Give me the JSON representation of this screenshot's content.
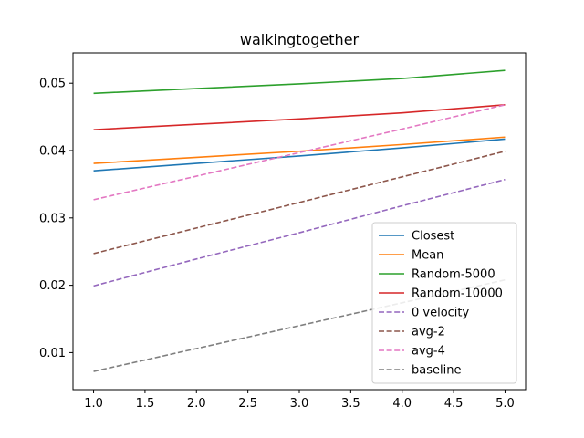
{
  "chart_data": {
    "type": "line",
    "title": "walkingtogether",
    "xlabel": "",
    "ylabel": "",
    "xlim": [
      0.8,
      5.2
    ],
    "ylim": [
      0.0045,
      0.0545
    ],
    "x_ticks": [
      "1.0",
      "1.5",
      "2.0",
      "2.5",
      "3.0",
      "3.5",
      "4.0",
      "4.5",
      "5.0"
    ],
    "y_ticks": [
      "0.01",
      "0.02",
      "0.03",
      "0.04",
      "0.05"
    ],
    "x": [
      1,
      2,
      3,
      4,
      5
    ],
    "grid": false,
    "legend_position": "lower-right",
    "series": [
      {
        "name": "Closest",
        "color": "#1f77b4",
        "dash": "solid",
        "values": [
          0.037,
          0.0381,
          0.0392,
          0.0404,
          0.0417
        ]
      },
      {
        "name": "Mean",
        "color": "#ff7f0e",
        "dash": "solid",
        "values": [
          0.0381,
          0.039,
          0.0399,
          0.0409,
          0.042
        ]
      },
      {
        "name": "Random-5000",
        "color": "#2ca02c",
        "dash": "solid",
        "values": [
          0.0485,
          0.0492,
          0.0499,
          0.0507,
          0.0519
        ]
      },
      {
        "name": "Random-10000",
        "color": "#d62728",
        "dash": "solid",
        "values": [
          0.0431,
          0.0439,
          0.0447,
          0.0456,
          0.0468
        ]
      },
      {
        "name": "0 velocity",
        "color": "#9467bd",
        "dash": "dashed",
        "values": [
          0.0199,
          0.0239,
          0.0278,
          0.0318,
          0.0357
        ]
      },
      {
        "name": "avg-2",
        "color": "#8c564b",
        "dash": "dashed",
        "values": [
          0.0247,
          0.0285,
          0.0323,
          0.0361,
          0.0399
        ]
      },
      {
        "name": "avg-4",
        "color": "#e377c2",
        "dash": "dashed",
        "values": [
          0.0327,
          0.0362,
          0.0397,
          0.0432,
          0.0468
        ]
      },
      {
        "name": "baseline",
        "color": "#7f7f7f",
        "dash": "dashed",
        "values": [
          0.0072,
          0.0106,
          0.014,
          0.0174,
          0.0208
        ]
      }
    ]
  }
}
